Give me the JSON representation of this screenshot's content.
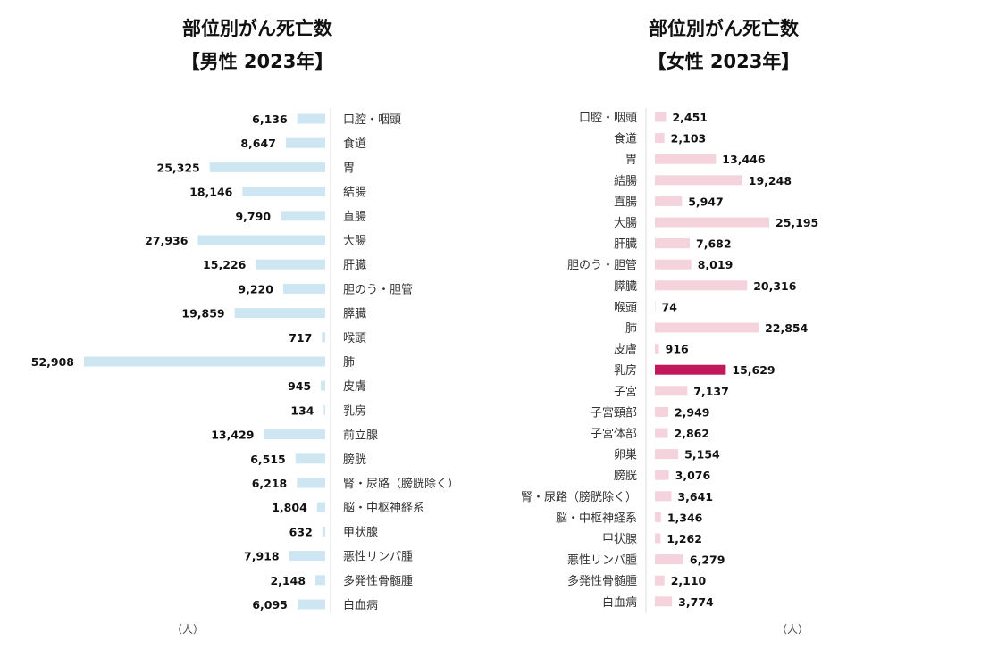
{
  "chart_data": [
    {
      "type": "bar",
      "orientation": "horizontal",
      "title": "部位別がん死亡数",
      "subtitle": "【男性 2023年】",
      "unit": "（人）",
      "bar_color": "#cde6f2",
      "categories": [
        "口腔・咽頭",
        "食道",
        "胃",
        "結腸",
        "直腸",
        "大腸",
        "肝臓",
        "胆のう・胆管",
        "膵臓",
        "喉頭",
        "肺",
        "皮膚",
        "乳房",
        "前立腺",
        "膀胱",
        "腎・尿路（膀胱除く）",
        "脳・中枢神経系",
        "甲状腺",
        "悪性リンパ腫",
        "多発性骨髄腫",
        "白血病"
      ],
      "values": [
        6136,
        8647,
        25325,
        18146,
        9790,
        27936,
        15226,
        9220,
        19859,
        717,
        52908,
        945,
        134,
        13429,
        6515,
        6218,
        1804,
        632,
        7918,
        2148,
        6095
      ],
      "value_labels": [
        "6,136",
        "8,647",
        "25,325",
        "18,146",
        "9,790",
        "27,936",
        "15,226",
        "9,220",
        "19,859",
        "717",
        "52,908",
        "945",
        "134",
        "13,429",
        "6,515",
        "6,218",
        "1,804",
        "632",
        "7,918",
        "2,148",
        "6,095"
      ],
      "grid": false,
      "legend": false
    },
    {
      "type": "bar",
      "orientation": "horizontal",
      "title": "部位別がん死亡数",
      "subtitle": "【女性 2023年】",
      "unit": "（人）",
      "bar_color": "#f5d3dd",
      "highlight_color": "#c2185b",
      "highlight_category": "乳房",
      "categories": [
        "口腔・咽頭",
        "食道",
        "胃",
        "結腸",
        "直腸",
        "大腸",
        "肝臓",
        "胆のう・胆管",
        "膵臓",
        "喉頭",
        "肺",
        "皮膚",
        "乳房",
        "子宮",
        "子宮頸部",
        "子宮体部",
        "卵巣",
        "膀胱",
        "腎・尿路（膀胱除く）",
        "脳・中枢神経系",
        "甲状腺",
        "悪性リンパ腫",
        "多発性骨髄腫",
        "白血病"
      ],
      "values": [
        2451,
        2103,
        13446,
        19248,
        5947,
        25195,
        7682,
        8019,
        20316,
        74,
        22854,
        916,
        15629,
        7137,
        2949,
        2862,
        5154,
        3076,
        3641,
        1346,
        1262,
        6279,
        2110,
        3774
      ],
      "value_labels": [
        "2,451",
        "2,103",
        "13,446",
        "19,248",
        "5,947",
        "25,195",
        "7,682",
        "8,019",
        "20,316",
        "74",
        "22,854",
        "916",
        "15,629",
        "7,137",
        "2,949",
        "2,862",
        "5,154",
        "3,076",
        "3,641",
        "1,346",
        "1,262",
        "6,279",
        "2,110",
        "3,774"
      ],
      "grid": false,
      "legend": false
    }
  ]
}
